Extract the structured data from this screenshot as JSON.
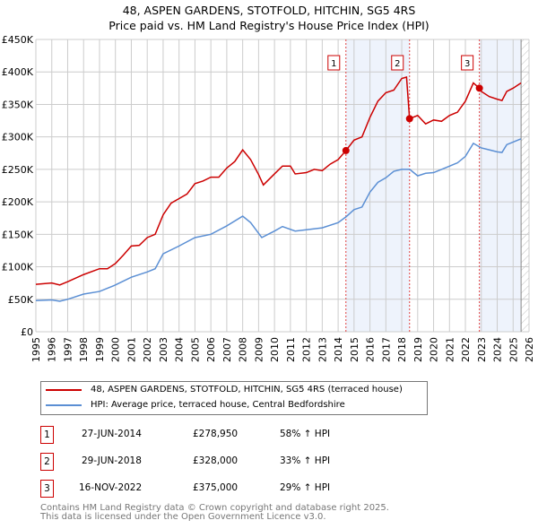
{
  "chart_data": {
    "type": "line",
    "title": "48, ASPEN GARDENS, STOTFOLD, HITCHIN, SG5 4RS",
    "subtitle": "Price paid vs. HM Land Registry's House Price Index (HPI)",
    "xlim": [
      1995,
      2026
    ],
    "ylim": [
      0,
      450000
    ],
    "x_ticks": [
      "1995",
      "1996",
      "1997",
      "1998",
      "1999",
      "2000",
      "2001",
      "2002",
      "2003",
      "2004",
      "2005",
      "2006",
      "2007",
      "2008",
      "2009",
      "2010",
      "2011",
      "2012",
      "2013",
      "2014",
      "2015",
      "2016",
      "2017",
      "2018",
      "2019",
      "2020",
      "2021",
      "2022",
      "2023",
      "2024",
      "2025",
      "2026"
    ],
    "y_ticks": [
      {
        "v": 0,
        "label": "£0"
      },
      {
        "v": 50000,
        "label": "£50K"
      },
      {
        "v": 100000,
        "label": "£100K"
      },
      {
        "v": 150000,
        "label": "£150K"
      },
      {
        "v": 200000,
        "label": "£200K"
      },
      {
        "v": 250000,
        "label": "£250K"
      },
      {
        "v": 300000,
        "label": "£300K"
      },
      {
        "v": 350000,
        "label": "£350K"
      },
      {
        "v": 400000,
        "label": "£400K"
      },
      {
        "v": 450000,
        "label": "£450K"
      }
    ],
    "grid": true,
    "series": [
      {
        "name": "48, ASPEN GARDENS, STOTFOLD, HITCHIN, SG5 4RS (terraced house)",
        "color": "#cc0000",
        "x": [
          1995,
          1996,
          1996.5,
          1997,
          1998,
          1999,
          1999.5,
          2000,
          2000.5,
          2001,
          2001.5,
          2002,
          2002.5,
          2003,
          2003.5,
          2004,
          2004.5,
          2005,
          2005.5,
          2006,
          2006.5,
          2007,
          2007.5,
          2008,
          2008.5,
          2009,
          2009.3,
          2010,
          2010.5,
          2011,
          2011.3,
          2012,
          2012.5,
          2013,
          2013.5,
          2014,
          2014.49,
          2015,
          2015.5,
          2016,
          2016.5,
          2017,
          2017.5,
          2018,
          2018.3,
          2018.49,
          2019,
          2019.5,
          2020,
          2020.5,
          2021,
          2021.5,
          2022,
          2022.5,
          2022.88,
          2023,
          2023.5,
          2024,
          2024.3,
          2024.6,
          2025,
          2025.5
        ],
        "y": [
          73000,
          75000,
          72000,
          77000,
          88000,
          97000,
          97000,
          105000,
          118000,
          132000,
          133000,
          145000,
          150000,
          180000,
          198000,
          205000,
          212000,
          228000,
          232000,
          238000,
          238000,
          252000,
          262000,
          280000,
          265000,
          242000,
          226000,
          243000,
          255000,
          255000,
          243000,
          245000,
          250000,
          248000,
          258000,
          265000,
          278950,
          295000,
          300000,
          330000,
          355000,
          368000,
          372000,
          390000,
          392000,
          328000,
          333000,
          320000,
          326000,
          324000,
          333000,
          338000,
          355000,
          383000,
          375000,
          370000,
          362000,
          358000,
          356000,
          370000,
          375000,
          383000
        ]
      },
      {
        "name": "HPI: Average price, terraced house, Central Bedfordshire",
        "color": "#5b8fd4",
        "x": [
          1995,
          1996,
          1996.5,
          1997,
          1998,
          1999,
          2000,
          2001,
          2002,
          2002.5,
          2003,
          2004,
          2005,
          2006,
          2007,
          2008,
          2008.5,
          2009.2,
          2010,
          2010.5,
          2011.3,
          2012,
          2013,
          2014,
          2014.5,
          2015,
          2015.5,
          2016,
          2016.5,
          2017,
          2017.5,
          2018,
          2018.5,
          2019,
          2019.5,
          2020,
          2020.5,
          2021,
          2021.5,
          2022,
          2022.5,
          2023,
          2023.5,
          2024,
          2024.3,
          2024.6,
          2025,
          2025.5
        ],
        "y": [
          48000,
          49000,
          47000,
          50000,
          58000,
          62000,
          72000,
          84000,
          92000,
          97000,
          120000,
          132000,
          145000,
          150000,
          163000,
          178000,
          168000,
          145000,
          155000,
          162000,
          155000,
          157000,
          160000,
          168000,
          177000,
          188000,
          192000,
          215000,
          230000,
          237000,
          247000,
          250000,
          250000,
          240000,
          244000,
          245000,
          250000,
          255000,
          260000,
          270000,
          290000,
          283000,
          280000,
          277000,
          276000,
          288000,
          292000,
          297000
        ]
      }
    ],
    "sales": [
      {
        "label": "1",
        "date": "27-JUN-2014",
        "x": 2014.49,
        "price": "£278,950",
        "value": 278950,
        "hpi": "58% ↑ HPI"
      },
      {
        "label": "2",
        "date": "29-JUN-2018",
        "x": 2018.49,
        "price": "£328,000",
        "value": 328000,
        "hpi": "33% ↑ HPI"
      },
      {
        "label": "3",
        "date": "16-NOV-2022",
        "x": 2022.88,
        "price": "£375,000",
        "value": 375000,
        "hpi": "29% ↑ HPI"
      }
    ],
    "shaded_ranges": [
      [
        2014.49,
        2018.49
      ],
      [
        2022.88,
        2025.5
      ]
    ],
    "data_end": 2025.5,
    "legend_placement": "bottom"
  },
  "footer": {
    "line1": "Contains HM Land Registry data © Crown copyright and database right 2025.",
    "line2": "This data is licensed under the Open Government Licence v3.0."
  }
}
